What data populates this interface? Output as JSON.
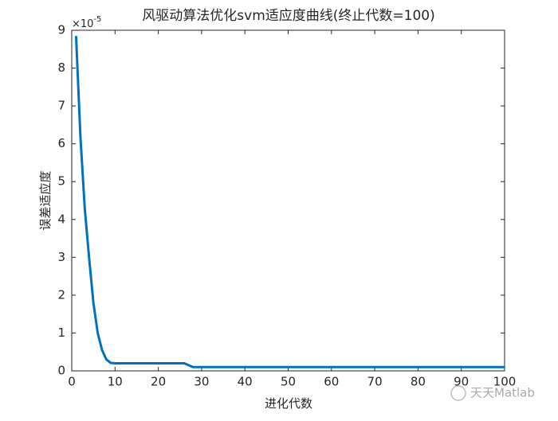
{
  "chart_data": {
    "type": "line",
    "title": "风驱动算法优化svm适应度曲线(终止代数=100)",
    "x_label": "进化代数",
    "y_label": "误差适应度",
    "y_multiplier": {
      "base": "×10",
      "exponent": "-5"
    },
    "watermark": "天天Matlab",
    "x": [
      1,
      2,
      3,
      4,
      5,
      6,
      7,
      8,
      9,
      10,
      11,
      12,
      13,
      14,
      15,
      16,
      17,
      18,
      19,
      20,
      21,
      22,
      23,
      24,
      25,
      26,
      27,
      28,
      29,
      30,
      31,
      32,
      33,
      34,
      35,
      36,
      37,
      38,
      39,
      40,
      41,
      42,
      43,
      44,
      45,
      46,
      47,
      48,
      49,
      50,
      51,
      52,
      53,
      54,
      55,
      56,
      57,
      58,
      59,
      60,
      61,
      62,
      63,
      64,
      65,
      66,
      67,
      68,
      69,
      70,
      71,
      72,
      73,
      74,
      75,
      76,
      77,
      78,
      79,
      80,
      81,
      82,
      83,
      84,
      85,
      86,
      87,
      88,
      89,
      90,
      91,
      92,
      93,
      94,
      95,
      96,
      97,
      98,
      99,
      100
    ],
    "series": [
      {
        "color": "#0072bd",
        "values": [
          8.85,
          6.2,
          4.3,
          3.0,
          1.8,
          1.0,
          0.55,
          0.3,
          0.21,
          0.2,
          0.2,
          0.2,
          0.2,
          0.2,
          0.2,
          0.2,
          0.2,
          0.2,
          0.2,
          0.2,
          0.2,
          0.2,
          0.2,
          0.2,
          0.2,
          0.2,
          0.15,
          0.1,
          0.1,
          0.1,
          0.1,
          0.1,
          0.1,
          0.1,
          0.1,
          0.1,
          0.1,
          0.1,
          0.1,
          0.1,
          0.1,
          0.1,
          0.1,
          0.1,
          0.1,
          0.1,
          0.1,
          0.1,
          0.1,
          0.1,
          0.1,
          0.1,
          0.1,
          0.1,
          0.1,
          0.1,
          0.1,
          0.1,
          0.1,
          0.1,
          0.1,
          0.1,
          0.1,
          0.1,
          0.1,
          0.1,
          0.1,
          0.1,
          0.1,
          0.1,
          0.1,
          0.1,
          0.1,
          0.1,
          0.1,
          0.1,
          0.1,
          0.1,
          0.1,
          0.1,
          0.1,
          0.1,
          0.1,
          0.1,
          0.1,
          0.1,
          0.1,
          0.1,
          0.1,
          0.1,
          0.1,
          0.1,
          0.1,
          0.1,
          0.1,
          0.1,
          0.1,
          0.1,
          0.1,
          0.1
        ]
      }
    ],
    "xlim": [
      0,
      100
    ],
    "xticks": [
      0,
      10,
      20,
      30,
      40,
      50,
      60,
      70,
      80,
      90,
      100
    ],
    "ylim": [
      0,
      9
    ],
    "yticks": [
      0,
      1,
      2,
      3,
      4,
      5,
      6,
      7,
      8,
      9
    ],
    "grid": false
  }
}
